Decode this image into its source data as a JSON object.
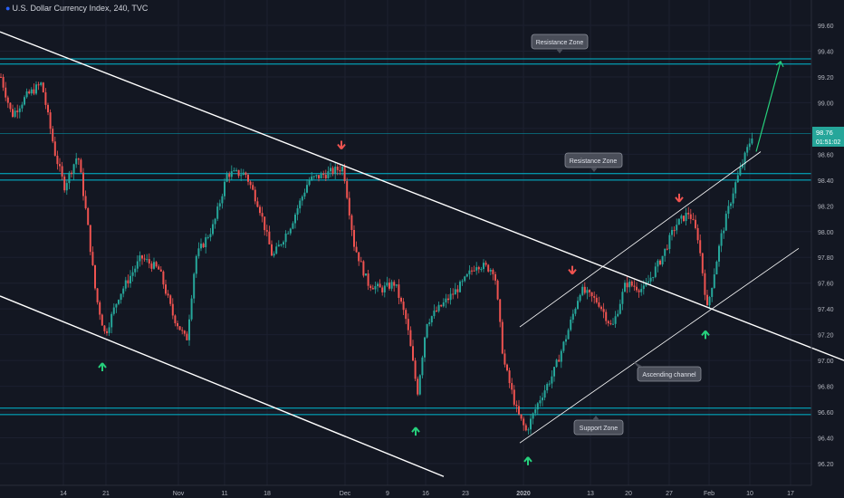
{
  "header": {
    "symbol_title": "U.S. Dollar Currency Index, 240, TVC"
  },
  "price_tag": {
    "price": "98.76",
    "countdown": "01:51:02"
  },
  "annotations": {
    "resistance_top": "Resistance Zone",
    "resistance_mid": "Resistance Zone",
    "ascending_channel": "Ascending channel",
    "support": "Support Zone"
  },
  "colors": {
    "background": "#131722",
    "up_candle": "#26a69a",
    "down_candle": "#ef5350",
    "zone_line": "#00bcd4",
    "trend_line": "#ffffff",
    "up_arrow": "#26d07c",
    "down_arrow": "#ef5350",
    "price_tag": "#26a69a"
  },
  "chart_data": {
    "type": "candlestick",
    "title": "U.S. Dollar Currency Index, 240, TVC",
    "ylim": [
      96.1,
      99.7
    ],
    "y_ticks": [
      "99.60",
      "99.40",
      "99.20",
      "99.00",
      "98.80",
      "98.60",
      "98.40",
      "98.20",
      "98.00",
      "97.80",
      "97.60",
      "97.40",
      "97.20",
      "97.00",
      "96.80",
      "96.60",
      "96.40",
      "96.20"
    ],
    "x_ticks": [
      "14",
      "21",
      "Nov",
      "11",
      "18",
      "Dec",
      "9",
      "16",
      "23",
      "2020",
      "13",
      "20",
      "27",
      "Feb",
      "10",
      "17"
    ],
    "price_path": [
      [
        0,
        99.2
      ],
      [
        12,
        98.9
      ],
      [
        28,
        99.05
      ],
      [
        45,
        99.15
      ],
      [
        60,
        98.6
      ],
      [
        70,
        98.35
      ],
      [
        85,
        98.6
      ],
      [
        95,
        98.1
      ],
      [
        105,
        97.5
      ],
      [
        115,
        97.2
      ],
      [
        130,
        97.5
      ],
      [
        155,
        97.8
      ],
      [
        175,
        97.7
      ],
      [
        190,
        97.35
      ],
      [
        205,
        97.15
      ],
      [
        215,
        97.8
      ],
      [
        235,
        98.05
      ],
      [
        250,
        98.45
      ],
      [
        270,
        98.45
      ],
      [
        285,
        98.2
      ],
      [
        300,
        97.8
      ],
      [
        320,
        98.05
      ],
      [
        340,
        98.4
      ],
      [
        360,
        98.45
      ],
      [
        378,
        98.5
      ],
      [
        390,
        97.9
      ],
      [
        405,
        97.6
      ],
      [
        420,
        97.55
      ],
      [
        435,
        97.6
      ],
      [
        448,
        97.3
      ],
      [
        460,
        96.75
      ],
      [
        470,
        97.3
      ],
      [
        490,
        97.45
      ],
      [
        510,
        97.6
      ],
      [
        525,
        97.75
      ],
      [
        545,
        97.7
      ],
      [
        555,
        97.0
      ],
      [
        570,
        96.6
      ],
      [
        580,
        96.45
      ],
      [
        595,
        96.7
      ],
      [
        610,
        96.9
      ],
      [
        625,
        97.2
      ],
      [
        640,
        97.55
      ],
      [
        660,
        97.45
      ],
      [
        675,
        97.25
      ],
      [
        690,
        97.6
      ],
      [
        710,
        97.55
      ],
      [
        730,
        97.8
      ],
      [
        745,
        98.05
      ],
      [
        760,
        98.15
      ],
      [
        770,
        97.95
      ],
      [
        780,
        97.4
      ],
      [
        795,
        97.95
      ],
      [
        810,
        98.35
      ],
      [
        820,
        98.55
      ],
      [
        830,
        98.76
      ]
    ],
    "zones": [
      {
        "name": "resistance_top",
        "values": [
          99.34,
          99.3
        ]
      },
      {
        "name": "resistance_mid",
        "values": [
          98.45,
          98.4
        ]
      },
      {
        "name": "support",
        "values": [
          96.63,
          96.58
        ]
      }
    ],
    "current_price_line": 98.76,
    "trend_lines": [
      {
        "name": "descending_upper",
        "from": [
          0,
          99.55
        ],
        "to": [
          932,
          97.0
        ]
      },
      {
        "name": "descending_lower",
        "from": [
          0,
          97.5
        ],
        "to": [
          490,
          96.1
        ]
      },
      {
        "name": "channel_upper",
        "from": [
          574,
          97.26
        ],
        "to": [
          840,
          98.62
        ]
      },
      {
        "name": "channel_lower",
        "from": [
          574,
          96.36
        ],
        "to": [
          882,
          97.87
        ]
      }
    ],
    "projection": {
      "from": [
        835,
        98.62
      ],
      "to": [
        862,
        99.32
      ]
    },
    "up_arrows": [
      [
        113,
        97.05
      ],
      [
        459,
        96.55
      ],
      [
        583,
        96.32
      ],
      [
        779,
        97.3
      ]
    ],
    "down_arrows": [
      [
        377,
        98.62
      ],
      [
        632,
        97.65
      ],
      [
        750,
        98.21
      ]
    ]
  }
}
